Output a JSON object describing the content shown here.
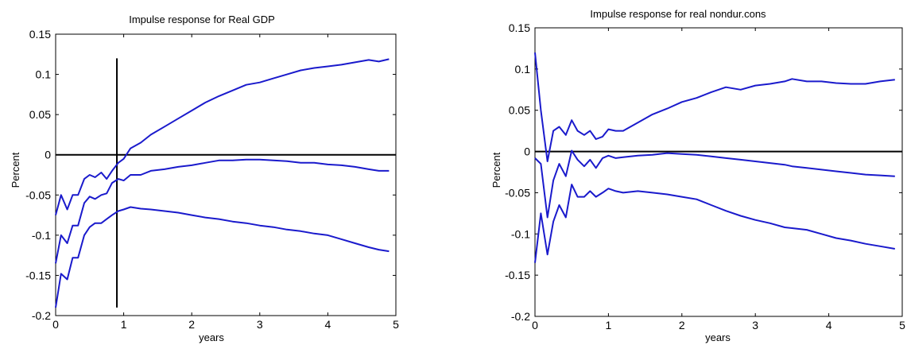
{
  "chart_data": [
    {
      "type": "line",
      "title": "Impulse response for Real GDP",
      "xlabel": "years",
      "ylabel": "Percent",
      "xlim": [
        0,
        5
      ],
      "ylim": [
        -0.2,
        0.15
      ],
      "xticks": [
        "0",
        "1",
        "2",
        "3",
        "4",
        "5"
      ],
      "yticks": [
        "0.15",
        "0.1",
        "0.05",
        "0",
        "-0.05",
        "-0.1",
        "-0.15",
        "-0.2"
      ],
      "grid": false,
      "reference_lines": {
        "horizontal_y": 0,
        "vertical_x": 0.9,
        "vertical_range": [
          -0.19,
          0.12
        ]
      },
      "series": [
        {
          "x": [
            0,
            0.08,
            0.17,
            0.25,
            0.33,
            0.42,
            0.5,
            0.58,
            0.67,
            0.75,
            0.83,
            0.92,
            1.0,
            1.1,
            1.25,
            1.4,
            1.6,
            1.8,
            2.0,
            2.2,
            2.4,
            2.6,
            2.8,
            3.0,
            3.2,
            3.4,
            3.6,
            3.8,
            4.0,
            4.2,
            4.4,
            4.6,
            4.75,
            4.9
          ],
          "values": [
            -0.075,
            -0.05,
            -0.068,
            -0.05,
            -0.05,
            -0.03,
            -0.025,
            -0.028,
            -0.022,
            -0.03,
            -0.02,
            -0.01,
            -0.005,
            0.008,
            0.015,
            0.025,
            0.035,
            0.045,
            0.055,
            0.065,
            0.073,
            0.08,
            0.087,
            0.09,
            0.095,
            0.1,
            0.105,
            0.108,
            0.11,
            0.112,
            0.115,
            0.118,
            0.116,
            0.119
          ]
        },
        {
          "x": [
            0,
            0.08,
            0.17,
            0.25,
            0.33,
            0.42,
            0.5,
            0.58,
            0.67,
            0.75,
            0.83,
            0.92,
            1.0,
            1.1,
            1.25,
            1.4,
            1.6,
            1.8,
            2.0,
            2.2,
            2.4,
            2.6,
            2.8,
            3.0,
            3.2,
            3.4,
            3.6,
            3.8,
            4.0,
            4.2,
            4.4,
            4.6,
            4.75,
            4.9
          ],
          "values": [
            -0.135,
            -0.1,
            -0.11,
            -0.088,
            -0.088,
            -0.06,
            -0.052,
            -0.055,
            -0.05,
            -0.048,
            -0.035,
            -0.03,
            -0.032,
            -0.025,
            -0.025,
            -0.02,
            -0.018,
            -0.015,
            -0.013,
            -0.01,
            -0.007,
            -0.007,
            -0.006,
            -0.006,
            -0.007,
            -0.008,
            -0.01,
            -0.01,
            -0.012,
            -0.013,
            -0.015,
            -0.018,
            -0.02,
            -0.02
          ]
        },
        {
          "x": [
            0,
            0.08,
            0.17,
            0.25,
            0.33,
            0.42,
            0.5,
            0.58,
            0.67,
            0.75,
            0.83,
            0.92,
            1.0,
            1.1,
            1.25,
            1.4,
            1.6,
            1.8,
            2.0,
            2.2,
            2.4,
            2.6,
            2.8,
            3.0,
            3.2,
            3.4,
            3.6,
            3.8,
            4.0,
            4.2,
            4.4,
            4.6,
            4.75,
            4.9
          ],
          "values": [
            -0.19,
            -0.148,
            -0.155,
            -0.128,
            -0.128,
            -0.1,
            -0.09,
            -0.085,
            -0.085,
            -0.08,
            -0.075,
            -0.07,
            -0.068,
            -0.065,
            -0.067,
            -0.068,
            -0.07,
            -0.072,
            -0.075,
            -0.078,
            -0.08,
            -0.083,
            -0.085,
            -0.088,
            -0.09,
            -0.093,
            -0.095,
            -0.098,
            -0.1,
            -0.105,
            -0.11,
            -0.115,
            -0.118,
            -0.12
          ]
        }
      ]
    },
    {
      "type": "line",
      "title": "Impulse response for real nondur.cons",
      "xlabel": "years",
      "ylabel": "Percent",
      "xlim": [
        0,
        5
      ],
      "ylim": [
        -0.2,
        0.15
      ],
      "xticks": [
        "0",
        "1",
        "2",
        "3",
        "4",
        "5"
      ],
      "yticks": [
        "0.15",
        "0.1",
        "0.05",
        "0",
        "-0.05",
        "-0.1",
        "-0.15",
        "-0.2"
      ],
      "grid": false,
      "reference_lines": {
        "horizontal_y": 0
      },
      "series": [
        {
          "x": [
            0,
            0.08,
            0.17,
            0.25,
            0.33,
            0.42,
            0.5,
            0.58,
            0.67,
            0.75,
            0.83,
            0.92,
            1.0,
            1.1,
            1.2,
            1.4,
            1.6,
            1.8,
            2.0,
            2.2,
            2.4,
            2.6,
            2.8,
            3.0,
            3.2,
            3.4,
            3.5,
            3.7,
            3.9,
            4.1,
            4.3,
            4.5,
            4.7,
            4.9
          ],
          "values": [
            0.12,
            0.05,
            -0.012,
            0.025,
            0.03,
            0.02,
            0.038,
            0.025,
            0.02,
            0.025,
            0.015,
            0.018,
            0.027,
            0.025,
            0.025,
            0.035,
            0.045,
            0.052,
            0.06,
            0.065,
            0.072,
            0.078,
            0.075,
            0.08,
            0.082,
            0.085,
            0.088,
            0.085,
            0.085,
            0.083,
            0.082,
            0.082,
            0.085,
            0.087
          ]
        },
        {
          "x": [
            0,
            0.08,
            0.17,
            0.25,
            0.33,
            0.42,
            0.5,
            0.58,
            0.67,
            0.75,
            0.83,
            0.92,
            1.0,
            1.1,
            1.2,
            1.4,
            1.6,
            1.8,
            2.0,
            2.2,
            2.4,
            2.6,
            2.8,
            3.0,
            3.2,
            3.4,
            3.5,
            3.7,
            3.9,
            4.1,
            4.3,
            4.5,
            4.7,
            4.9
          ],
          "values": [
            -0.008,
            -0.015,
            -0.08,
            -0.035,
            -0.015,
            -0.03,
            0.001,
            -0.01,
            -0.018,
            -0.01,
            -0.02,
            -0.008,
            -0.005,
            -0.008,
            -0.007,
            -0.005,
            -0.004,
            -0.002,
            -0.003,
            -0.004,
            -0.006,
            -0.008,
            -0.01,
            -0.012,
            -0.014,
            -0.016,
            -0.018,
            -0.02,
            -0.022,
            -0.024,
            -0.026,
            -0.028,
            -0.029,
            -0.03
          ]
        },
        {
          "x": [
            0,
            0.08,
            0.17,
            0.25,
            0.33,
            0.42,
            0.5,
            0.58,
            0.67,
            0.75,
            0.83,
            0.92,
            1.0,
            1.1,
            1.2,
            1.4,
            1.6,
            1.8,
            2.0,
            2.2,
            2.4,
            2.6,
            2.8,
            3.0,
            3.2,
            3.4,
            3.5,
            3.7,
            3.9,
            4.1,
            4.3,
            4.5,
            4.7,
            4.9
          ],
          "values": [
            -0.135,
            -0.075,
            -0.125,
            -0.085,
            -0.065,
            -0.08,
            -0.04,
            -0.055,
            -0.055,
            -0.048,
            -0.055,
            -0.05,
            -0.045,
            -0.048,
            -0.05,
            -0.048,
            -0.05,
            -0.052,
            -0.055,
            -0.058,
            -0.065,
            -0.072,
            -0.078,
            -0.083,
            -0.087,
            -0.092,
            -0.093,
            -0.095,
            -0.1,
            -0.105,
            -0.108,
            -0.112,
            -0.115,
            -0.118
          ]
        }
      ]
    }
  ],
  "colors": {
    "series": "#1a1acc",
    "axis": "#000000",
    "reference": "#000000"
  }
}
